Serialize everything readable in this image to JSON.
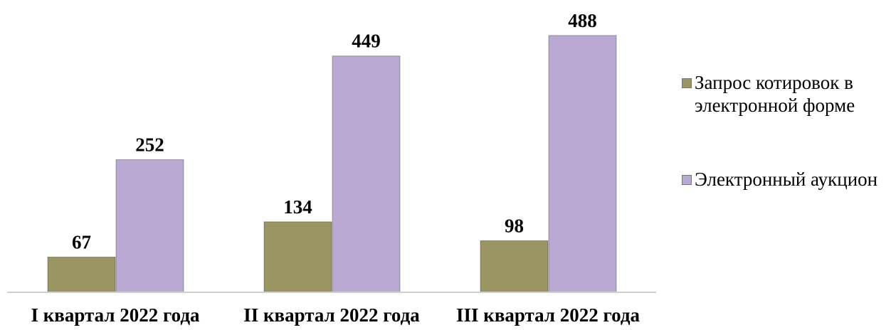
{
  "chart_data": {
    "type": "bar",
    "categories": [
      "I квартал 2022 года",
      "II квартал 2022 года",
      "III квартал 2022 года"
    ],
    "series": [
      {
        "name": "Запрос котировок в электронной форме",
        "color": "#9b9563",
        "values": [
          67,
          134,
          98
        ]
      },
      {
        "name": "Электронный аукцион",
        "color": "#b9a9d3",
        "values": [
          252,
          449,
          488
        ]
      }
    ],
    "ylim": [
      0,
      500
    ],
    "legend": "right"
  }
}
